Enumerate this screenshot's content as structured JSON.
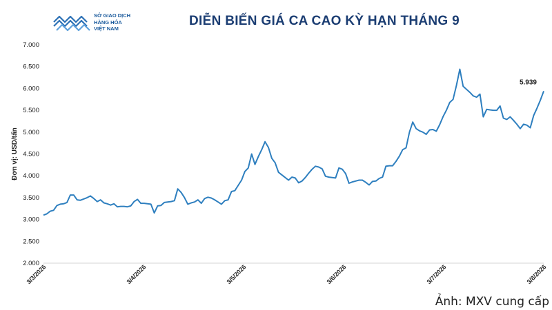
{
  "logo": {
    "line1": "SỞ GIAO DỊCH",
    "line2": "HÀNG HÓA",
    "line3": "VIỆT NAM"
  },
  "credit": "Ảnh: MXV cung cấp",
  "colors": {
    "line": "#2e7fbf",
    "title": "#1c3e73",
    "logo": "#1a5a9c"
  },
  "chart_data": {
    "type": "line",
    "title": "DIỄN BIẾN GIÁ CA CAO KỲ HẠN THÁNG 9",
    "ylabel": "Đơn vị: USD/tấn",
    "xlabel": "",
    "ylim": [
      2000,
      7000
    ],
    "yticks": [
      "2.000",
      "2.500",
      "3.000",
      "3.500",
      "4.000",
      "4.500",
      "5.000",
      "5.500",
      "6.000",
      "6.500",
      "7.000"
    ],
    "xticks": [
      "3/3/2026",
      "3/4/2026",
      "3/5/2026",
      "3/6/2026",
      "3/7/2026",
      "3/8/2026"
    ],
    "grid": false,
    "annotation": {
      "text": "5.939",
      "value": 5939
    },
    "series": [
      {
        "values": [
          3100,
          3130,
          3190,
          3210,
          3320,
          3350,
          3360,
          3390,
          3560,
          3560,
          3450,
          3440,
          3470,
          3500,
          3540,
          3480,
          3410,
          3450,
          3380,
          3360,
          3330,
          3360,
          3290,
          3300,
          3300,
          3290,
          3310,
          3410,
          3460,
          3370,
          3370,
          3360,
          3350,
          3150,
          3310,
          3320,
          3390,
          3400,
          3410,
          3430,
          3700,
          3620,
          3500,
          3350,
          3380,
          3400,
          3450,
          3370,
          3480,
          3510,
          3490,
          3450,
          3400,
          3350,
          3430,
          3450,
          3640,
          3660,
          3780,
          3900,
          4100,
          4180,
          4500,
          4260,
          4440,
          4600,
          4780,
          4650,
          4400,
          4300,
          4080,
          4020,
          3960,
          3900,
          3970,
          3950,
          3840,
          3880,
          3960,
          4060,
          4150,
          4220,
          4200,
          4160,
          3990,
          3970,
          3960,
          3950,
          4180,
          4150,
          4050,
          3830,
          3860,
          3880,
          3900,
          3900,
          3850,
          3790,
          3870,
          3880,
          3940,
          3970,
          4220,
          4230,
          4230,
          4330,
          4450,
          4600,
          4640,
          5000,
          5230,
          5080,
          5030,
          5000,
          4950,
          5050,
          5060,
          5020,
          5170,
          5350,
          5500,
          5680,
          5750,
          6070,
          6440,
          6050,
          5980,
          5910,
          5830,
          5800,
          5870,
          5350,
          5520,
          5510,
          5500,
          5500,
          5600,
          5320,
          5290,
          5350,
          5270,
          5180,
          5080,
          5180,
          5160,
          5100,
          5380,
          5550,
          5730,
          5939
        ]
      }
    ]
  }
}
